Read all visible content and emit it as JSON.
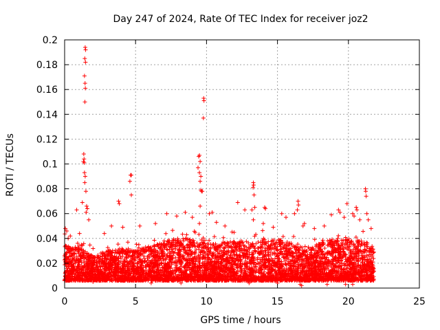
{
  "chart_data": {
    "type": "scatter",
    "title": "Day 247 of 2024, Rate Of TEC Index for receiver joz2",
    "xlabel": "GPS time / hours",
    "ylabel": "ROTI / TECUs",
    "xlim": [
      0,
      25
    ],
    "ylim": [
      0,
      0.2
    ],
    "xticks": [
      0,
      5,
      10,
      15,
      20,
      25
    ],
    "yticks": [
      0,
      0.02,
      0.04,
      0.06,
      0.08,
      0.1,
      0.12,
      0.14,
      0.16,
      0.18,
      0.2
    ],
    "grid": true,
    "marker": "+",
    "color": "#ff0000",
    "series": [
      {
        "values": [
          [
            1.45,
            0.194
          ],
          [
            1.48,
            0.192
          ],
          [
            1.42,
            0.185
          ],
          [
            1.47,
            0.182
          ],
          [
            1.4,
            0.171
          ],
          [
            1.44,
            0.165
          ],
          [
            1.46,
            0.161
          ],
          [
            1.43,
            0.15
          ],
          [
            1.35,
            0.108
          ],
          [
            1.37,
            0.104
          ],
          [
            1.33,
            0.102
          ],
          [
            1.38,
            0.101
          ],
          [
            1.4,
            0.093
          ],
          [
            1.45,
            0.09
          ],
          [
            1.42,
            0.085
          ],
          [
            1.5,
            0.078
          ],
          [
            1.55,
            0.066
          ],
          [
            1.6,
            0.064
          ],
          [
            1.52,
            0.061
          ],
          [
            1.25,
            0.069
          ],
          [
            0.85,
            0.063
          ],
          [
            1.05,
            0.044
          ],
          [
            1.7,
            0.055
          ],
          [
            0.05,
            0.048
          ],
          [
            0.15,
            0.046
          ],
          [
            0.25,
            0.04
          ],
          [
            0.4,
            0.042
          ],
          [
            4.65,
            0.091
          ],
          [
            4.7,
            0.091
          ],
          [
            4.6,
            0.086
          ],
          [
            4.7,
            0.075
          ],
          [
            3.8,
            0.07
          ],
          [
            3.85,
            0.068
          ],
          [
            3.3,
            0.05
          ],
          [
            2.8,
            0.044
          ],
          [
            4.1,
            0.049
          ],
          [
            5.3,
            0.05
          ],
          [
            6.4,
            0.052
          ],
          [
            7.2,
            0.06
          ],
          [
            7.9,
            0.058
          ],
          [
            8.5,
            0.061
          ],
          [
            9.0,
            0.057
          ],
          [
            9.5,
            0.107
          ],
          [
            9.45,
            0.106
          ],
          [
            9.55,
            0.102
          ],
          [
            9.4,
            0.097
          ],
          [
            9.5,
            0.093
          ],
          [
            9.6,
            0.09
          ],
          [
            9.55,
            0.086
          ],
          [
            9.6,
            0.079
          ],
          [
            9.65,
            0.078
          ],
          [
            9.7,
            0.078
          ],
          [
            9.55,
            0.066
          ],
          [
            9.5,
            0.052
          ],
          [
            9.8,
            0.153
          ],
          [
            9.82,
            0.151
          ],
          [
            9.78,
            0.137
          ],
          [
            10.4,
            0.061
          ],
          [
            10.2,
            0.06
          ],
          [
            10.7,
            0.053
          ],
          [
            11.3,
            0.05
          ],
          [
            12.2,
            0.069
          ],
          [
            12.7,
            0.063
          ],
          [
            13.3,
            0.085
          ],
          [
            13.32,
            0.083
          ],
          [
            13.28,
            0.081
          ],
          [
            13.35,
            0.075
          ],
          [
            13.4,
            0.065
          ],
          [
            13.2,
            0.063
          ],
          [
            13.3,
            0.055
          ],
          [
            14.1,
            0.065
          ],
          [
            14.15,
            0.064
          ],
          [
            14.0,
            0.052
          ],
          [
            14.7,
            0.049
          ],
          [
            15.3,
            0.06
          ],
          [
            15.6,
            0.057
          ],
          [
            16.2,
            0.06
          ],
          [
            16.45,
            0.07
          ],
          [
            16.48,
            0.067
          ],
          [
            16.4,
            0.063
          ],
          [
            16.9,
            0.052
          ],
          [
            16.8,
            0.05
          ],
          [
            17.6,
            0.048
          ],
          [
            18.3,
            0.05
          ],
          [
            18.8,
            0.059
          ],
          [
            19.3,
            0.063
          ],
          [
            19.4,
            0.061
          ],
          [
            19.7,
            0.057
          ],
          [
            19.9,
            0.068
          ],
          [
            20.3,
            0.06
          ],
          [
            20.55,
            0.065
          ],
          [
            20.6,
            0.063
          ],
          [
            20.4,
            0.058
          ],
          [
            20.8,
            0.055
          ],
          [
            21.2,
            0.08
          ],
          [
            21.22,
            0.078
          ],
          [
            21.25,
            0.074
          ],
          [
            21.3,
            0.06
          ],
          [
            21.4,
            0.055
          ],
          [
            21.6,
            0.048
          ],
          [
            16.6,
            0.003
          ],
          [
            16.7,
            0.002
          ],
          [
            18.5,
            0.003
          ],
          [
            19.8,
            0.003
          ],
          [
            20.3,
            0.003
          ],
          [
            2.0,
            0.005
          ],
          [
            6.1,
            0.004
          ],
          [
            8.2,
            0.004
          ],
          [
            13.0,
            0.004
          ],
          [
            15.0,
            0.004
          ]
        ]
      }
    ],
    "dense_band": {
      "x_start": 0,
      "x_end": 21.8,
      "profile": [
        [
          0.0,
          0.036
        ],
        [
          0.5,
          0.032
        ],
        [
          1.0,
          0.034
        ],
        [
          2.0,
          0.026
        ],
        [
          3.0,
          0.03
        ],
        [
          4.0,
          0.032
        ],
        [
          5.0,
          0.03
        ],
        [
          6.0,
          0.034
        ],
        [
          7.0,
          0.038
        ],
        [
          8.0,
          0.04
        ],
        [
          9.0,
          0.04
        ],
        [
          10.0,
          0.036
        ],
        [
          11.0,
          0.036
        ],
        [
          12.0,
          0.038
        ],
        [
          13.0,
          0.038
        ],
        [
          14.0,
          0.04
        ],
        [
          15.0,
          0.04
        ],
        [
          16.0,
          0.036
        ],
        [
          17.0,
          0.032
        ],
        [
          18.0,
          0.036
        ],
        [
          19.0,
          0.04
        ],
        [
          20.0,
          0.04
        ],
        [
          21.0,
          0.038
        ],
        [
          21.8,
          0.034
        ]
      ],
      "floor": 0.006
    }
  }
}
